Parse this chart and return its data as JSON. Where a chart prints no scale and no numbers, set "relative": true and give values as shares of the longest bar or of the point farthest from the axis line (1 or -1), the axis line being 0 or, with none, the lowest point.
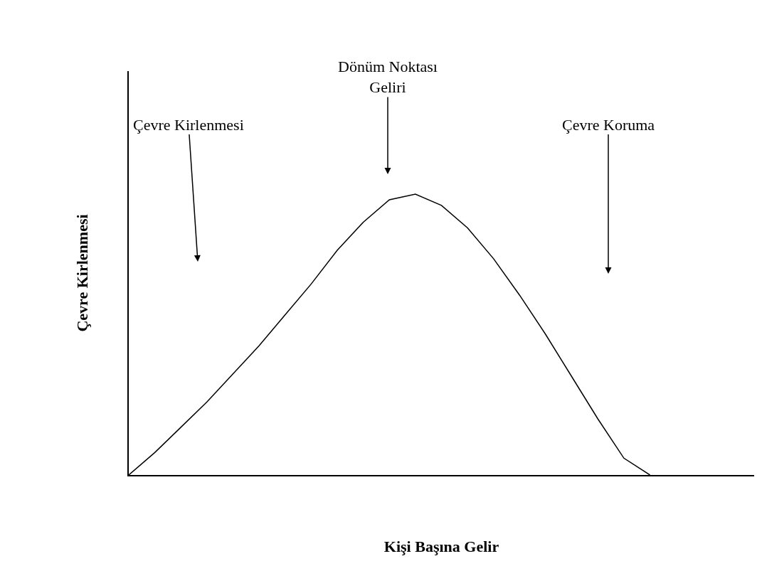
{
  "chart_data": {
    "type": "line",
    "relative": true,
    "xlabel": "Kişi Başına Gelir",
    "ylabel": "Çevre Kirlenmesi",
    "categories": [
      null,
      null,
      null,
      null,
      null,
      null,
      null,
      null,
      null,
      null,
      null,
      null,
      null,
      null,
      null,
      null,
      null,
      null,
      null,
      null,
      null,
      null,
      null,
      null,
      null
    ],
    "series": [
      {
        "color": "#000000",
        "values": [
          0,
          0.08,
          0.17,
          0.26,
          0.36,
          0.46,
          0.57,
          0.68,
          0.8,
          0.9,
          0.98,
          1.0,
          0.96,
          0.88,
          0.77,
          0.64,
          0.5,
          0.35,
          0.2,
          0.06,
          0,
          null,
          null,
          null,
          null
        ]
      }
    ],
    "annotations": [
      "Çevre Kirlenmesi",
      "Dönüm Noktası\nGeliri",
      "Çevre Koruma"
    ],
    "marker": "none",
    "line_style": "solid"
  }
}
